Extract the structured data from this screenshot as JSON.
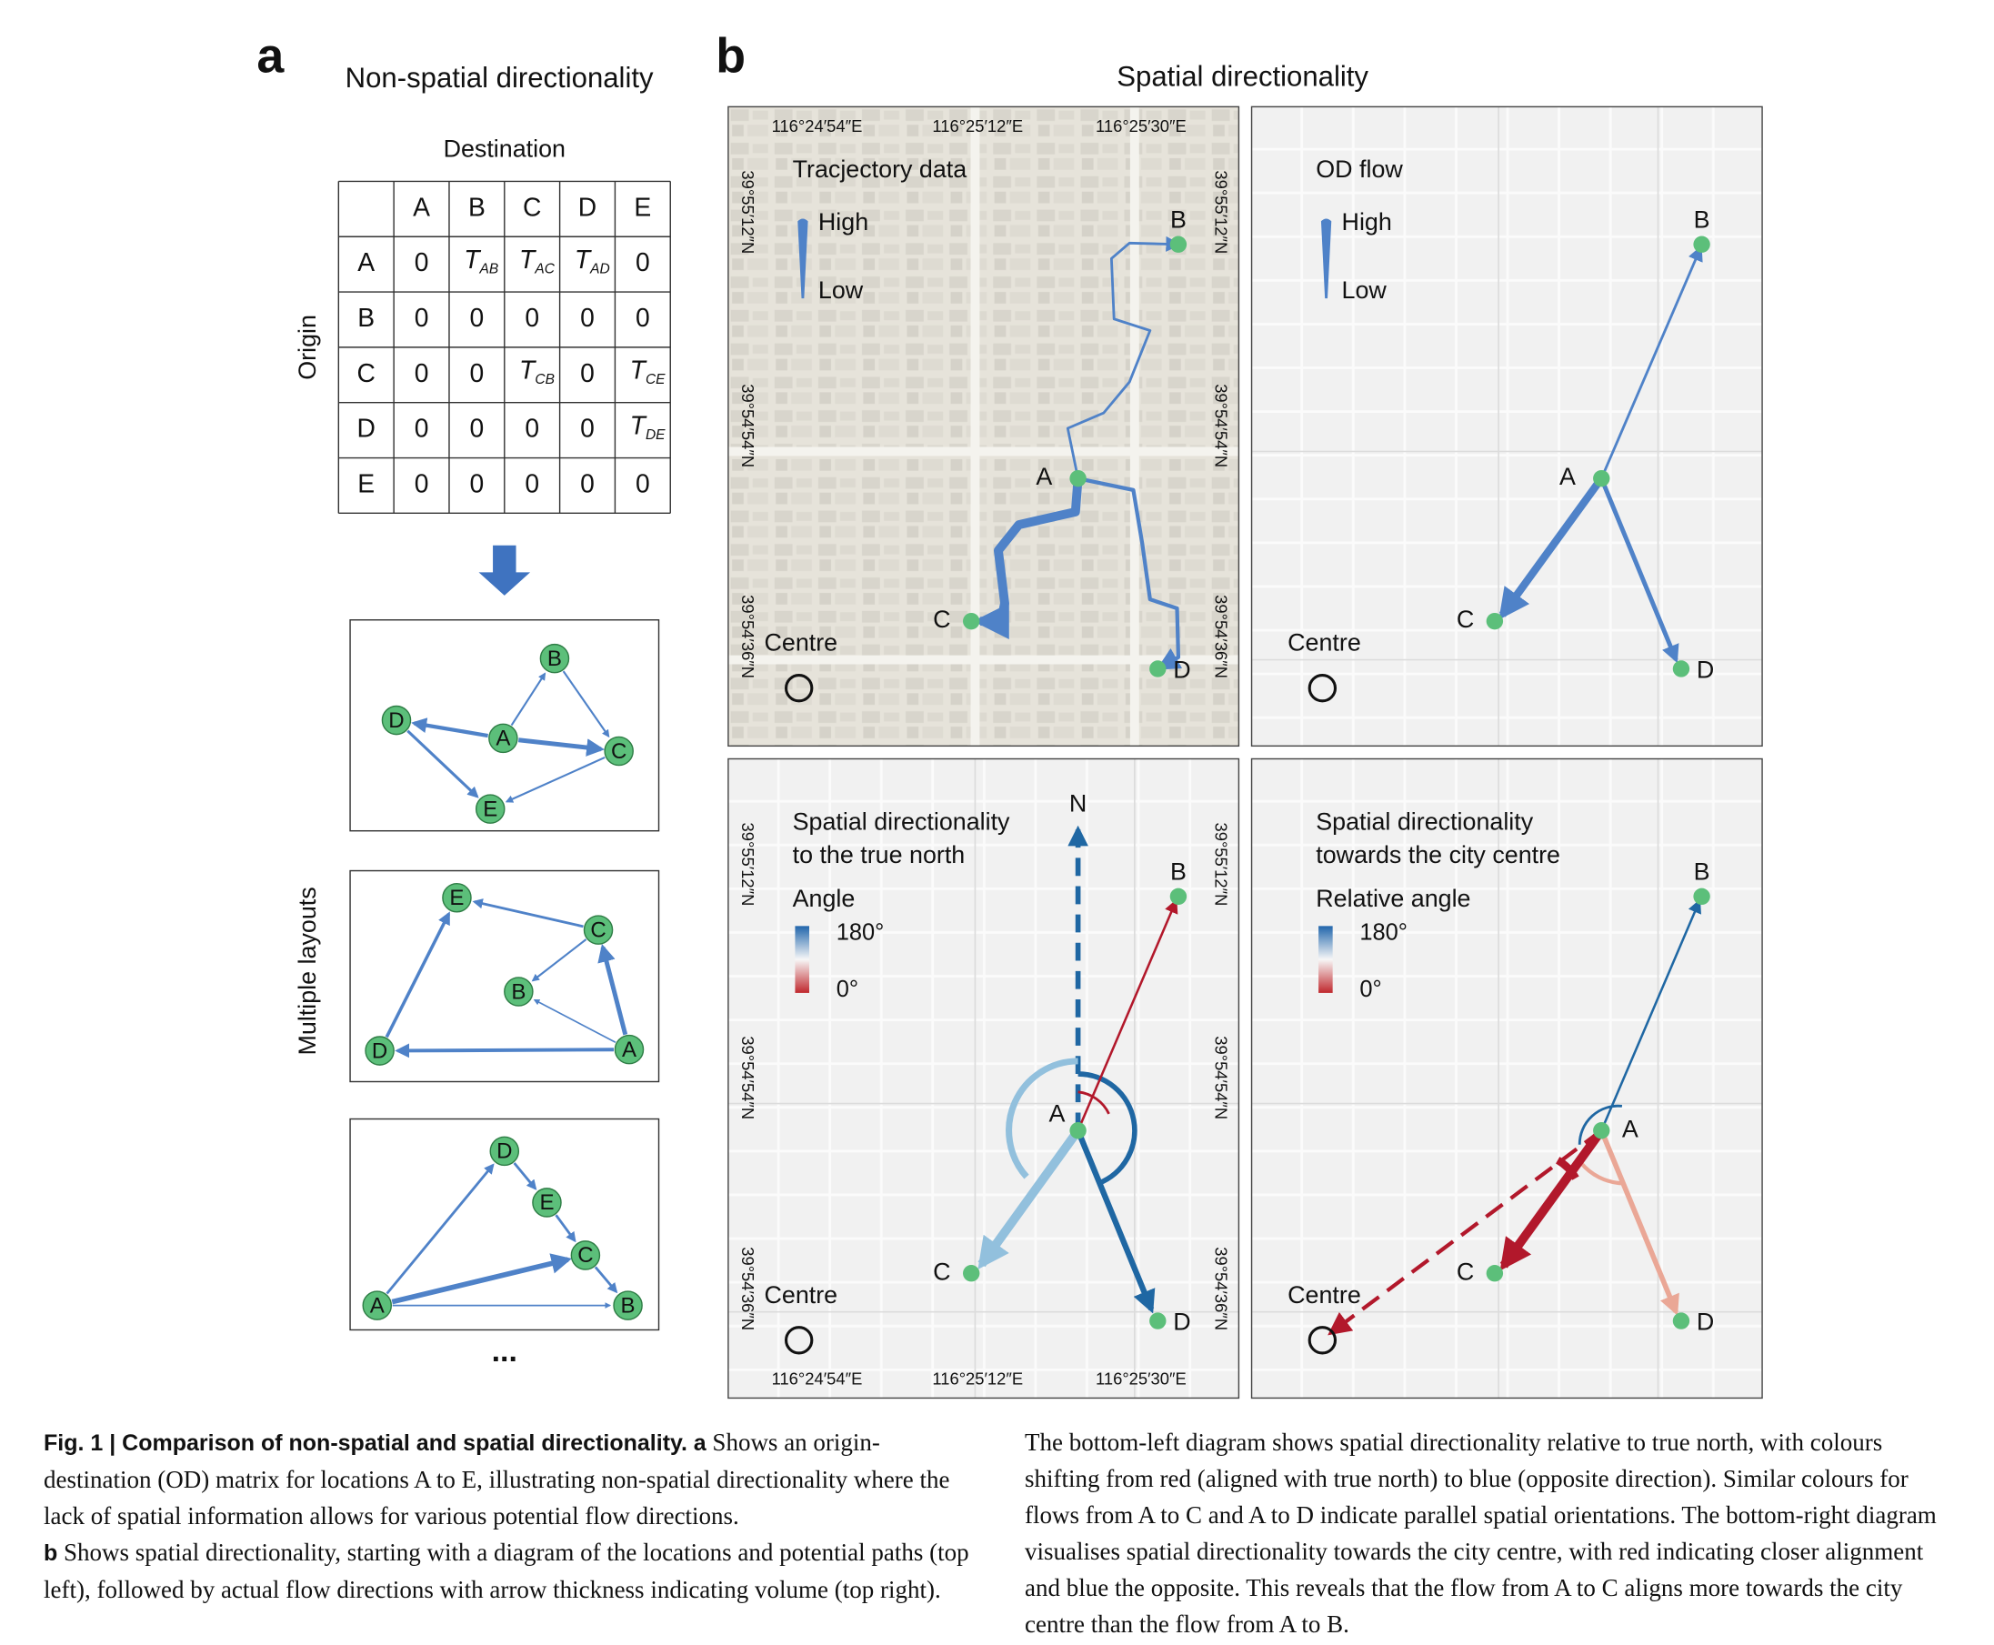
{
  "panel_a": {
    "label": "a",
    "title": "Non-spatial directionality",
    "matrix": {
      "column_title": "Destination",
      "row_title": "Origin",
      "columns": [
        "A",
        "B",
        "C",
        "D",
        "E"
      ],
      "rows": [
        {
          "label": "A",
          "cells": [
            0,
            {
              "main": "T",
              "sub": "AB"
            },
            {
              "main": "T",
              "sub": "AC"
            },
            {
              "main": "T",
              "sub": "AD"
            },
            0
          ]
        },
        {
          "label": "B",
          "cells": [
            0,
            0,
            0,
            0,
            0
          ]
        },
        {
          "label": "C",
          "cells": [
            0,
            0,
            {
              "main": "T",
              "sub": "CB"
            },
            0,
            {
              "main": "T",
              "sub": "CE"
            }
          ]
        },
        {
          "label": "D",
          "cells": [
            0,
            0,
            0,
            0,
            {
              "main": "T",
              "sub": "DE"
            }
          ]
        },
        {
          "label": "E",
          "cells": [
            0,
            0,
            0,
            0,
            0
          ]
        }
      ]
    },
    "layouts_title": "Multiple layouts",
    "graphs": [
      {
        "nodes": [
          "B",
          "D",
          "A",
          "C",
          "E"
        ]
      },
      {
        "nodes": [
          "E",
          "C",
          "B",
          "D",
          "A"
        ]
      },
      {
        "nodes": [
          "D",
          "E",
          "C",
          "A",
          "B"
        ]
      }
    ],
    "ellipsis": "..."
  },
  "panel_b": {
    "label": "b",
    "title": "Spatial directionality",
    "longitudes": [
      "116°24′54″E",
      "116°25′12″E",
      "116°25′30″E"
    ],
    "latitudes": [
      "39°55′12″N",
      "39°54′54″N",
      "39°54′36″N"
    ],
    "maps": [
      {
        "title": [
          "Tracjectory data"
        ],
        "legend": [
          "High",
          "Low"
        ],
        "points": [
          "A",
          "B",
          "C",
          "D"
        ],
        "centre": "Centre"
      },
      {
        "title": [
          "OD flow"
        ],
        "legend": [
          "High",
          "Low"
        ],
        "points": [
          "A",
          "B",
          "C",
          "D"
        ],
        "centre": "Centre"
      },
      {
        "title": [
          "Spatial directionality",
          "to the true north"
        ],
        "legend_title": "Angle",
        "legend": [
          "180°",
          "0°"
        ],
        "north": "N",
        "points": [
          "A",
          "B",
          "C",
          "D"
        ],
        "centre": "Centre"
      },
      {
        "title": [
          "Spatial directionality",
          "towards the city centre"
        ],
        "legend_title": "Relative angle",
        "legend": [
          "180°",
          "0°"
        ],
        "points": [
          "A",
          "B",
          "C",
          "D"
        ],
        "centre": "Centre"
      }
    ]
  },
  "caption": {
    "title": "Fig. 1 | Comparison of non-spatial and spatial directionality.",
    "part_a_label": "a",
    "part_a": "Shows an origin-destination (OD) matrix for locations A to E, illustrating non-spatial directionality where the lack of spatial information allows for various potential flow directions.",
    "part_b_label": "b",
    "part_b": "Shows spatial directionality, starting with a diagram of the locations and potential paths (top left), followed by actual flow directions with arrow thickness indicating volume (top right). The bottom-left diagram shows spatial directionality relative to true north, with colours shifting from red (aligned with true north) to blue (opposite direction). Similar colours for flows from A to C and A to D indicate parallel spatial orientations. The bottom-right diagram visualises spatial directionality towards the city centre, with red indicating closer alignment and blue the opposite. This reveals that the flow from A to C aligns more towards the city centre than the flow from A to B."
  }
}
